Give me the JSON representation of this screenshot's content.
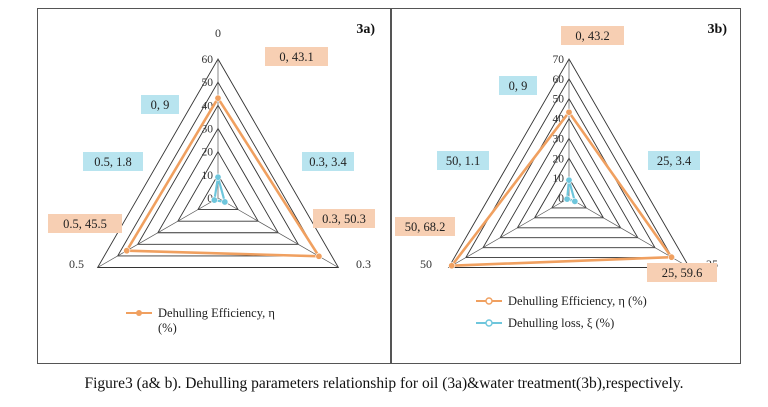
{
  "chart_data": [
    {
      "type": "radar",
      "title": "3a)",
      "categories": [
        "0",
        "0.3",
        "0.5"
      ],
      "rmax": 60,
      "ticks": [
        0,
        10,
        20,
        30,
        40,
        50,
        60
      ],
      "grid": true,
      "legend": "bottom",
      "series": [
        {
          "name": "Dehulling Efficiency, η (%)",
          "values": [
            43.1,
            50.3,
            45.5
          ],
          "color": "#f0a060"
        },
        {
          "name": "",
          "values": [
            9,
            3.4,
            1.8
          ],
          "color": "#6ec6dc"
        }
      ],
      "data_labels": [
        {
          "text": "0, 43.1",
          "bg": "#f7cfb3"
        },
        {
          "text": "0.3, 50.3",
          "bg": "#f7cfb3"
        },
        {
          "text": "0.5, 45.5",
          "bg": "#f7cfb3"
        },
        {
          "text": "0, 9",
          "bg": "#b8e4ef"
        },
        {
          "text": "0.3, 3.4",
          "bg": "#b8e4ef"
        },
        {
          "text": "0.5, 1.8",
          "bg": "#b8e4ef"
        }
      ],
      "legend_lines": [
        "Dehulling Efficiency, η",
        "(%)"
      ]
    },
    {
      "type": "radar",
      "title": "3b)",
      "categories": [
        "0",
        "25",
        "50"
      ],
      "rmax": 70,
      "ticks": [
        0,
        10,
        20,
        30,
        40,
        50,
        60,
        70
      ],
      "grid": true,
      "legend": "bottom",
      "series": [
        {
          "name": "Dehulling Efficiency, η (%)",
          "values": [
            43.2,
            59.6,
            68.2
          ],
          "color": "#f0a060"
        },
        {
          "name": "Dehulling loss, ξ (%)",
          "values": [
            9,
            3.4,
            1.1
          ],
          "color": "#6ec6dc"
        }
      ],
      "data_labels": [
        {
          "text": "0, 43.2",
          "bg": "#f7cfb3"
        },
        {
          "text": "25, 59.6",
          "bg": "#f7cfb3"
        },
        {
          "text": "50, 68.2",
          "bg": "#f7cfb3"
        },
        {
          "text": "0, 9",
          "bg": "#b8e4ef"
        },
        {
          "text": "25, 3.4",
          "bg": "#b8e4ef"
        },
        {
          "text": "50, 1.1",
          "bg": "#b8e4ef"
        }
      ],
      "legend_lines": [
        "Dehulling Efficiency, η (%)",
        "Dehulling loss, ξ (%)"
      ]
    }
  ],
  "caption": "Figure3 (a& b). Dehulling parameters relationship  for oil (3a)&water treatment(3b),respectively."
}
